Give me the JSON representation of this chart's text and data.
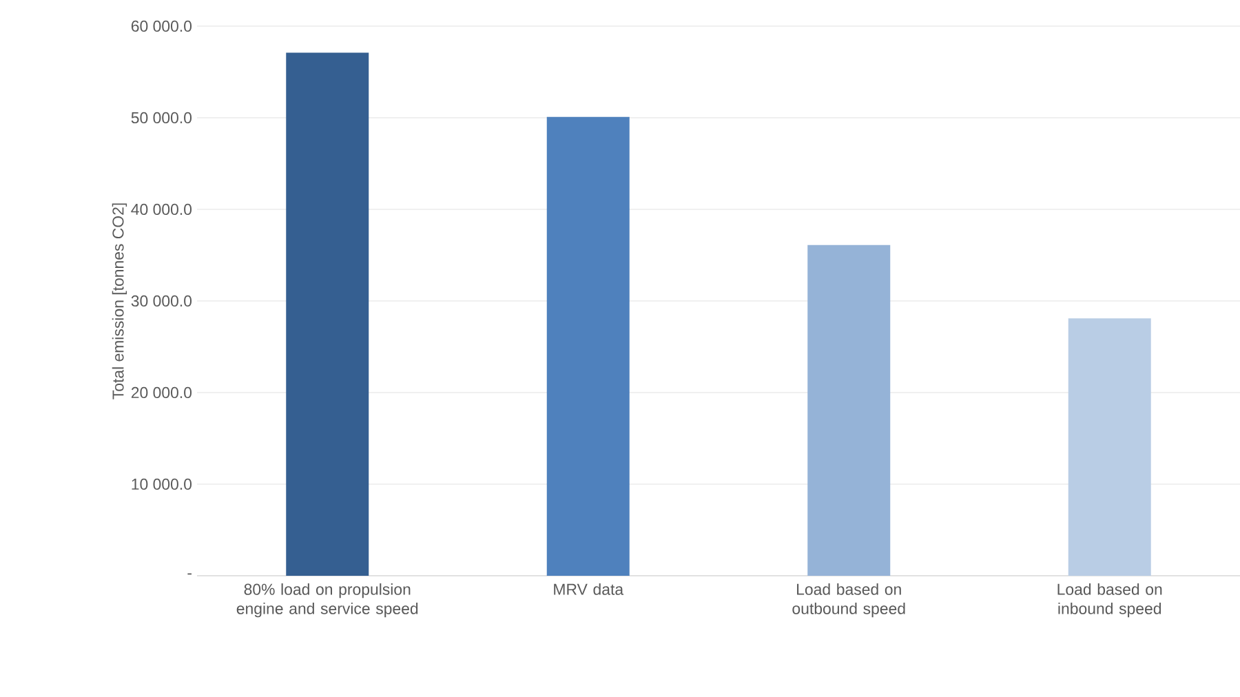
{
  "chart_data": {
    "type": "bar",
    "ylabel": "Total emission [tonnes CO2]",
    "categories": [
      "80% load on propulsion engine and service speed",
      "MRV data",
      "Load based on outbound speed",
      "Load based on inbound speed"
    ],
    "values": [
      57100,
      50100,
      36100,
      28100
    ],
    "colors": [
      "#355f91",
      "#4f81bd",
      "#95b3d7",
      "#b9cde5"
    ],
    "ylim": [
      0,
      60000
    ],
    "yticks": [
      {
        "value": 0,
        "label": "-"
      },
      {
        "value": 10000,
        "label": "10 000.0"
      },
      {
        "value": 20000,
        "label": "20 000.0"
      },
      {
        "value": 30000,
        "label": "30 000.0"
      },
      {
        "value": 40000,
        "label": "40 000.0"
      },
      {
        "value": 50000,
        "label": "50 000.0"
      },
      {
        "value": 60000,
        "label": "60 000.0"
      }
    ],
    "grid": true
  }
}
